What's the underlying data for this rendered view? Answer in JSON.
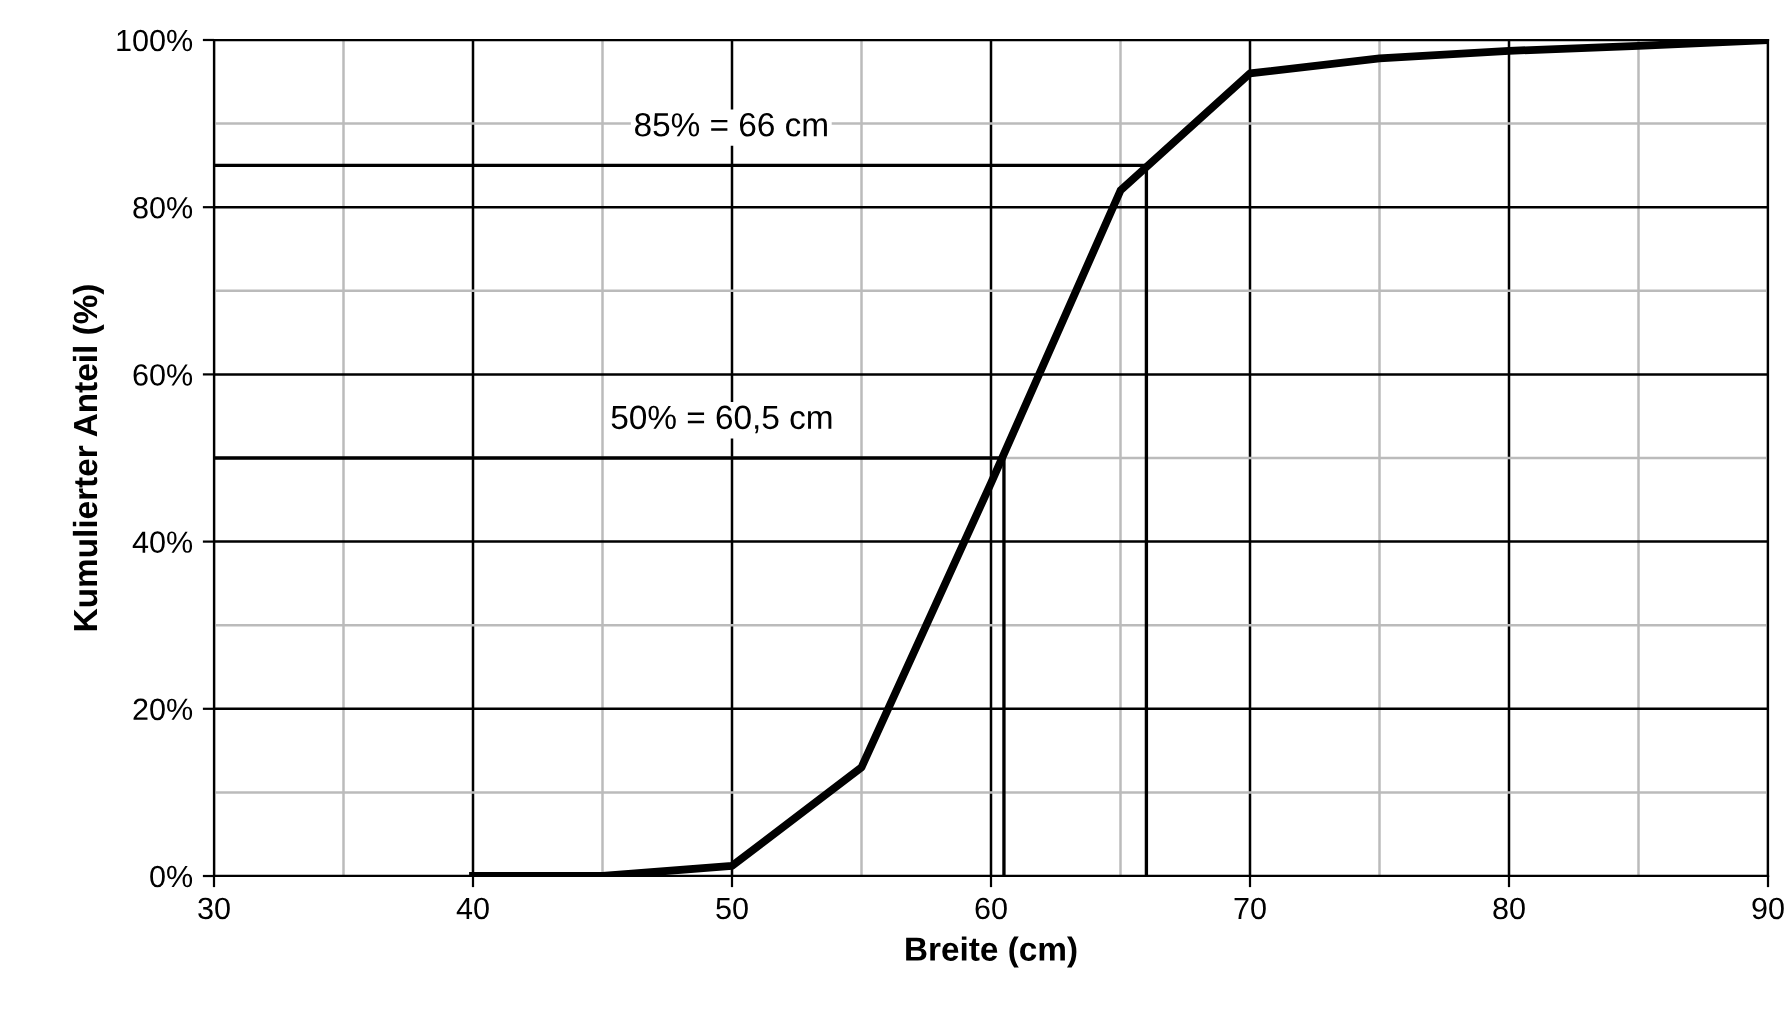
{
  "chart_data": {
    "type": "line",
    "xlabel": "Breite (cm)",
    "ylabel": "Kumulierter Anteil (%)",
    "xlim": [
      30,
      90
    ],
    "ylim": [
      0,
      100
    ],
    "xticks": [
      30,
      {
        "value": 35,
        "label": null
      },
      40,
      {
        "value": 45,
        "label": null
      },
      50,
      {
        "value": 55,
        "label": null
      },
      60,
      {
        "value": 65,
        "label": null
      },
      70,
      {
        "value": 75,
        "label": null
      },
      80,
      {
        "value": 85,
        "label": null
      },
      90
    ],
    "yticks": [
      {
        "value": 0,
        "label": "0%"
      },
      {
        "value": 10,
        "label": null
      },
      {
        "value": 20,
        "label": "20%"
      },
      {
        "value": 30,
        "label": null
      },
      {
        "value": 40,
        "label": "40%"
      },
      {
        "value": 50,
        "label": null
      },
      {
        "value": 60,
        "label": "60%"
      },
      {
        "value": 70,
        "label": null
      },
      {
        "value": 80,
        "label": "80%"
      },
      {
        "value": 90,
        "label": null
      },
      {
        "value": 100,
        "label": "100%"
      }
    ],
    "grid": true,
    "marker": "none",
    "line_style": "solid",
    "series": [
      {
        "color": "#000000",
        "x": [
          40,
          45,
          50,
          55,
          60,
          65,
          70,
          75,
          80,
          85,
          90
        ],
        "values": [
          0,
          0,
          1.2,
          13,
          47,
          82,
          96,
          97.8,
          98.7,
          99.3,
          100
        ]
      },
      {
        "color": "#000000",
        "x": [
          30,
          66,
          66
        ],
        "values": [
          85,
          85,
          0
        ]
      },
      {
        "color": "#000000",
        "x": [
          30,
          60.5,
          60.5
        ],
        "values": [
          50,
          50,
          0
        ]
      }
    ],
    "annotations": [
      "85% = 66 cm",
      "50% = 60,5 cm"
    ]
  }
}
